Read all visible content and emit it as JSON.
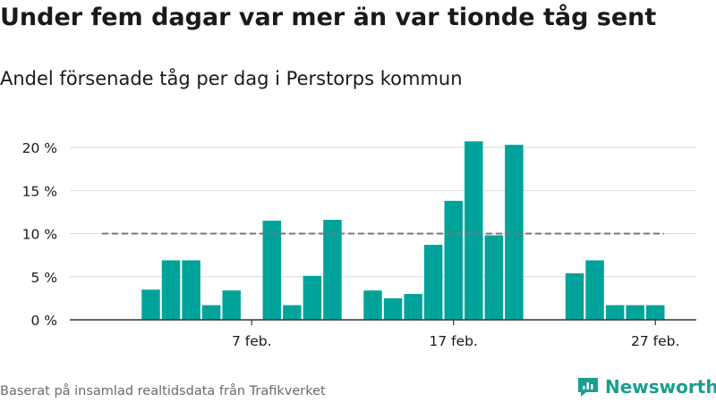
{
  "title": "Under fem dagar var mer än var tionde tåg sent",
  "subtitle": "Andel försenade tåg per dag i Perstorps kommun",
  "footer": "Baserat på insamlad realtidsdata från Trafikverket",
  "brand": {
    "name": "Newsworthy",
    "color": "#1a9e8f"
  },
  "chart_data": {
    "type": "bar",
    "bar_color": "#00a39a",
    "reference_line": {
      "value": 10,
      "style": "dashed",
      "color": "#777777"
    },
    "ylim": [
      0,
      20
    ],
    "y_ticks": [
      {
        "value": 0,
        "label": "0 %"
      },
      {
        "value": 5,
        "label": "5 %"
      },
      {
        "value": 10,
        "label": "10 %"
      },
      {
        "value": 15,
        "label": "15 %"
      },
      {
        "value": 20,
        "label": "20 %"
      }
    ],
    "x_ticks": [
      {
        "day": 7,
        "label": "7 feb."
      },
      {
        "day": 17,
        "label": "17 feb."
      },
      {
        "day": 27,
        "label": "27 feb."
      }
    ],
    "grid": true,
    "days": [
      2,
      3,
      4,
      5,
      6,
      7,
      8,
      9,
      10,
      11,
      12,
      13,
      14,
      15,
      16,
      17,
      18,
      19,
      20,
      21,
      22,
      23,
      24,
      25,
      26,
      27,
      28
    ],
    "values": [
      3.5,
      6.9,
      6.9,
      1.7,
      3.4,
      null,
      11.5,
      1.7,
      5.1,
      11.6,
      null,
      3.4,
      2.5,
      3.0,
      8.7,
      13.8,
      20.7,
      9.8,
      20.3,
      null,
      null,
      5.4,
      6.9,
      1.7,
      1.7,
      1.7,
      null
    ]
  }
}
